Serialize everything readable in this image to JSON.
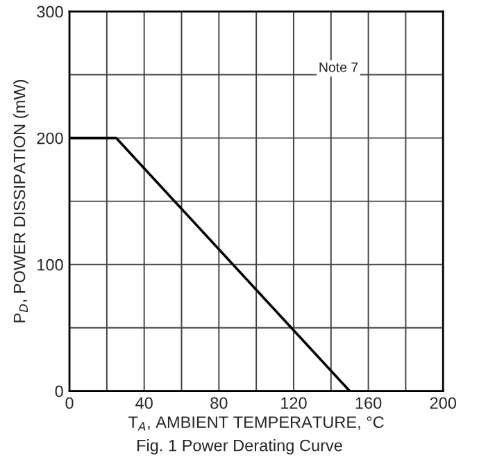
{
  "chart_data": {
    "type": "line",
    "title": "Fig. 1 Power Derating Curve",
    "xlabel": "T$_{A}$, AMBIENT TEMPERATURE, °C",
    "ylabel": "P$_{D}$, POWER DISSIPATION (mW)",
    "annotations": [
      "Note 7"
    ],
    "x": [
      0,
      25,
      150
    ],
    "series": [
      {
        "color": "#000000",
        "values": [
          200,
          200,
          0
        ]
      }
    ],
    "xlim": [
      0,
      200
    ],
    "ylim": [
      0,
      300
    ],
    "xticks": [
      0,
      {
        "value": 20,
        "label": null
      },
      40,
      {
        "value": 60,
        "label": null
      },
      80,
      {
        "value": 100,
        "label": null
      },
      120,
      {
        "value": 140,
        "label": null
      },
      160,
      {
        "value": 180,
        "label": null
      },
      200
    ],
    "yticks": [
      0,
      {
        "value": 50,
        "label": null
      },
      100,
      {
        "value": 150,
        "label": null
      },
      200,
      {
        "value": 250,
        "label": null
      },
      300
    ],
    "grid": true,
    "line_style": "solid",
    "marker": "none",
    "legend": false
  }
}
